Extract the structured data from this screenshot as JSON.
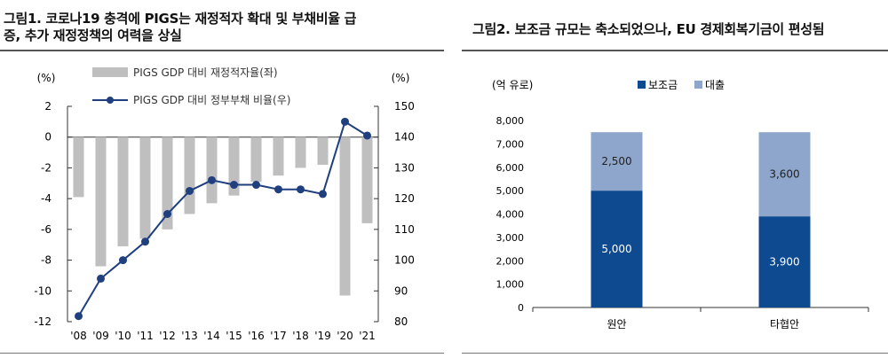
{
  "left": {
    "title_line1": "그림1. 코로나19 충격에 PIGS는 재정적자 확대 및 부채비율 급",
    "title_line2": "증, 추가 재정정책의 여력을 상실"
  },
  "right": {
    "title": "그림2. 보조금 규모는 축소되었으나, EU 경제회복기금이 편성됨"
  },
  "chart_data": [
    {
      "type": "bar+line",
      "categories": [
        "'08",
        "'09",
        "'10",
        "'11",
        "'12",
        "'13",
        "'14",
        "'15",
        "'16",
        "'17",
        "'18",
        "'19",
        "'20",
        "'21"
      ],
      "y_left_unit": "(%)",
      "y_right_unit": "(%)",
      "y_left_ticks": [
        "2",
        "0",
        "-2",
        "-4",
        "-6",
        "-8",
        "-10",
        "-12"
      ],
      "y_right_ticks": [
        "150",
        "140",
        "130",
        "120",
        "110",
        "100",
        "90",
        "80"
      ],
      "ylim_left": [
        -12,
        2
      ],
      "ylim_right": [
        80,
        150
      ],
      "series": [
        {
          "name": "PIGS GDP 대비 재정적자율(좌)",
          "kind": "bar",
          "axis": "left",
          "color": "#bfbfbf",
          "values": [
            -3.9,
            -8.4,
            -7.1,
            -6.6,
            -6.0,
            -5.0,
            -4.3,
            -3.8,
            -2.9,
            -2.5,
            -2.0,
            -1.8,
            -10.3,
            -5.6
          ]
        },
        {
          "name": "PIGS GDP 대비 정부부채 비율(우)",
          "kind": "line",
          "axis": "right",
          "color": "#1f3f7f",
          "values": [
            81.8,
            94.0,
            100.0,
            106.0,
            115.0,
            122.5,
            126.0,
            124.5,
            124.5,
            123.0,
            123.0,
            121.5,
            145.0,
            140.5
          ]
        }
      ]
    },
    {
      "type": "bar",
      "stacked": true,
      "unit": "(억 유로)",
      "categories": [
        "원안",
        "타협안"
      ],
      "ylim": [
        0,
        8000
      ],
      "y_ticks": [
        "8,000",
        "7,000",
        "6,000",
        "5,000",
        "4,000",
        "3,000",
        "2,000",
        "1,000",
        "0"
      ],
      "series": [
        {
          "name": "보조금",
          "color": "#0e4a8f",
          "values": [
            5000,
            3900
          ],
          "labels": [
            "5,000",
            "3,900"
          ]
        },
        {
          "name": "대출",
          "color": "#8ea5cc",
          "values": [
            2500,
            3600
          ],
          "labels": [
            "2,500",
            "3,600"
          ]
        }
      ]
    }
  ]
}
